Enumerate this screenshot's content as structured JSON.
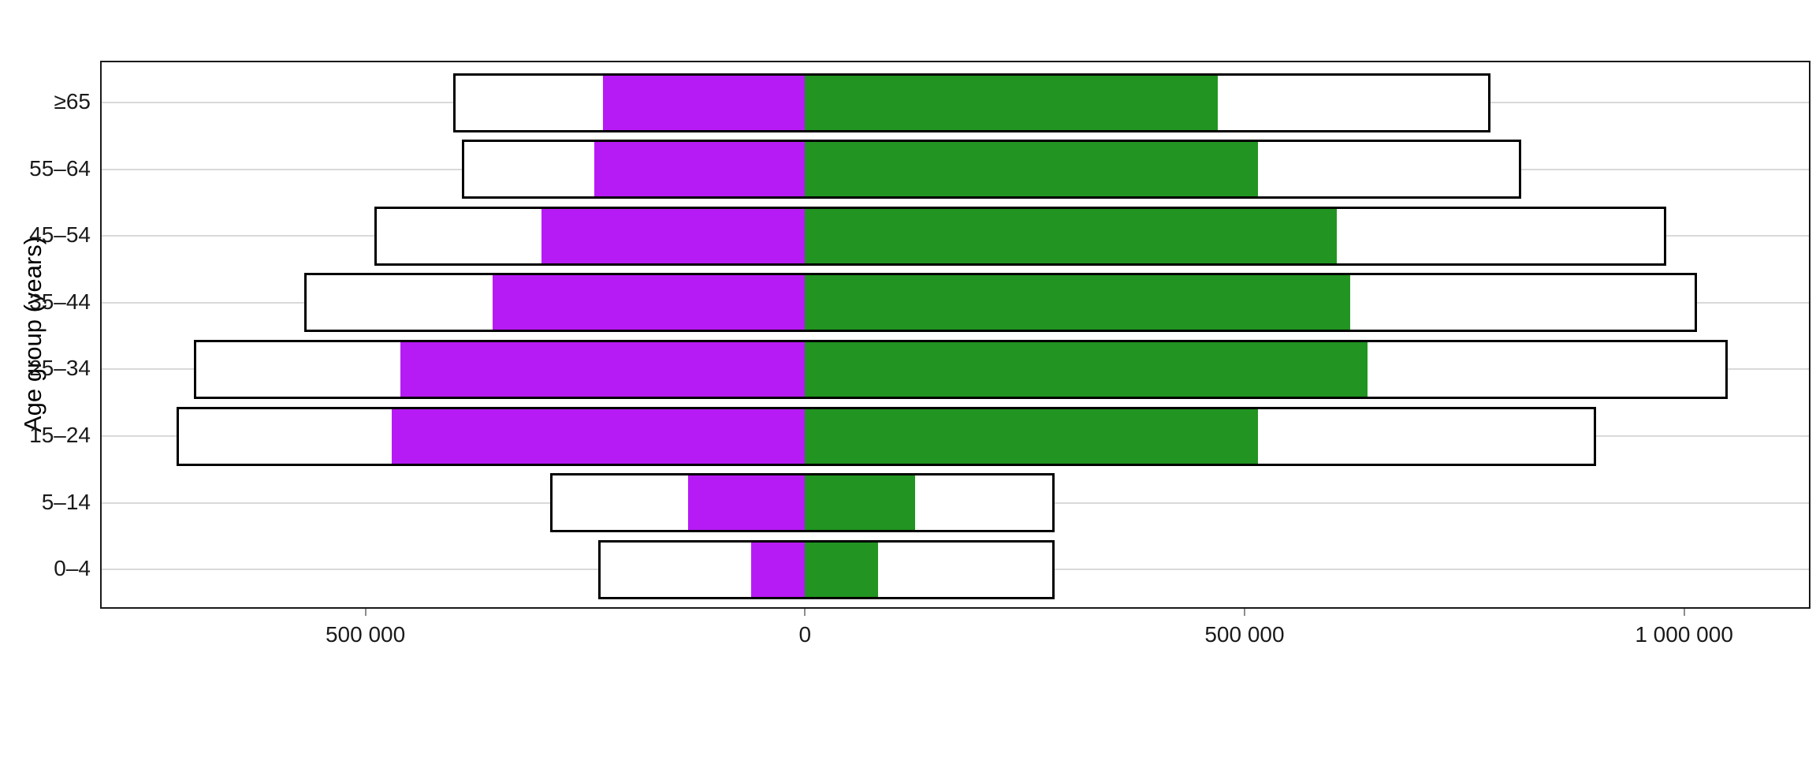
{
  "chart_data": {
    "type": "bar",
    "variant": "diverging-horizontal-pyramid",
    "title": "",
    "xlabel": "",
    "ylabel": "Age group (years)",
    "categories_top_to_bottom": [
      "≥65",
      "55–64",
      "45–54",
      "35–44",
      "25–34",
      "15–24",
      "5–14",
      "0–4"
    ],
    "series": [
      {
        "name": "left-filled-magenta",
        "direction": "left",
        "color": "#B71BF5",
        "values": [
          230000,
          240000,
          300000,
          355000,
          460000,
          470000,
          133000,
          61000
        ]
      },
      {
        "name": "right-filled-green",
        "direction": "right",
        "color": "#219421",
        "values": [
          470000,
          515000,
          605000,
          620000,
          640000,
          515000,
          125000,
          83000
        ]
      },
      {
        "name": "left-outlined-white",
        "direction": "left",
        "color": "#FFFFFF",
        "values": [
          400000,
          390000,
          490000,
          570000,
          695000,
          715000,
          290000,
          235000
        ]
      },
      {
        "name": "right-outlined-white",
        "direction": "right",
        "color": "#FFFFFF",
        "values": [
          780000,
          815000,
          980000,
          1015000,
          1050000,
          900000,
          284000,
          284000
        ]
      }
    ],
    "x_axis": {
      "ticks": [
        {
          "value": -500000,
          "label": "500 000"
        },
        {
          "value": 0,
          "label": "0"
        },
        {
          "value": 500000,
          "label": "500 000"
        },
        {
          "value": 1000000,
          "label": "1 000 000"
        }
      ],
      "xlim": [
        -800000,
        1142000
      ]
    },
    "grid": "horizontal-major-only",
    "legend_position": "none",
    "colors": {
      "left_fill": "#B71BF5",
      "right_fill": "#219421",
      "bar_outline": "#000000",
      "panel_border": "#1a1a1a",
      "gridline": "#d9d9d9",
      "tick_mark": "#8c8c8c",
      "axis_text": "#1a1a1a"
    }
  }
}
